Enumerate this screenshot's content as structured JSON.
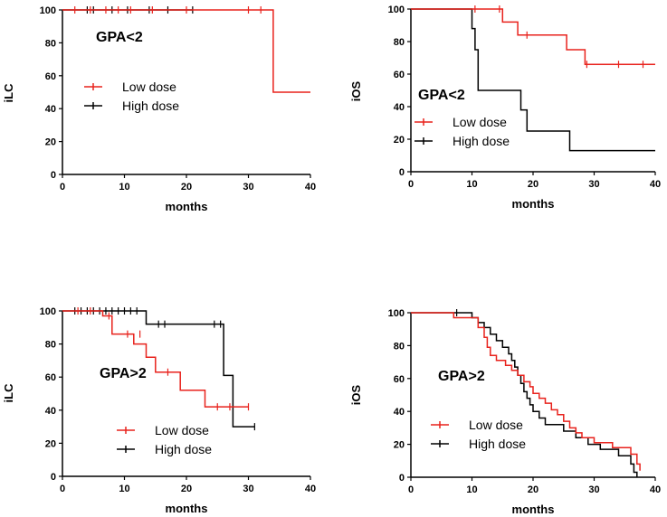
{
  "colors": {
    "low": "#e8221c",
    "high": "#000000"
  },
  "chart_data": [
    {
      "type": "line",
      "subtype": "kaplan-meier",
      "annotation": "GPA<2",
      "xlabel": "months",
      "ylabel": "iLC",
      "xlim": [
        0,
        40
      ],
      "ylim": [
        0,
        100
      ],
      "xticks": [
        "0",
        "10",
        "20",
        "30",
        "40"
      ],
      "yticks": [
        "0",
        "20",
        "40",
        "60",
        "80",
        "100"
      ],
      "legend": [
        "Low dose",
        "High dose"
      ],
      "series": [
        {
          "name": "Low dose",
          "steps": [
            [
              0,
              100
            ],
            [
              34,
              100
            ],
            [
              34,
              50
            ],
            [
              40,
              50
            ]
          ],
          "censors": [
            [
              2,
              100
            ],
            [
              4.5,
              100
            ],
            [
              7,
              100
            ],
            [
              9,
              100
            ],
            [
              11,
              100
            ],
            [
              14.5,
              100
            ],
            [
              20,
              100
            ],
            [
              30,
              100
            ],
            [
              32,
              100
            ]
          ]
        },
        {
          "name": "High dose",
          "steps": [
            [
              0,
              100
            ],
            [
              21,
              100
            ]
          ],
          "censors": [
            [
              4,
              100
            ],
            [
              5,
              100
            ],
            [
              8,
              100
            ],
            [
              10.5,
              100
            ],
            [
              14,
              100
            ],
            [
              17,
              100
            ],
            [
              21,
              100
            ]
          ]
        }
      ]
    },
    {
      "type": "line",
      "subtype": "kaplan-meier",
      "annotation": "GPA<2",
      "xlabel": "months",
      "ylabel": "iOS",
      "xlim": [
        0,
        40
      ],
      "ylim": [
        0,
        100
      ],
      "xticks": [
        "0",
        "10",
        "20",
        "30",
        "40"
      ],
      "yticks": [
        "0",
        "20",
        "40",
        "60",
        "80",
        "100"
      ],
      "legend": [
        "Low dose",
        "High dose"
      ],
      "series": [
        {
          "name": "Low dose",
          "steps": [
            [
              0,
              100
            ],
            [
              15,
              100
            ],
            [
              15,
              92
            ],
            [
              17.5,
              92
            ],
            [
              17.5,
              84
            ],
            [
              25.5,
              84
            ],
            [
              25.5,
              75
            ],
            [
              28.5,
              75
            ],
            [
              28.5,
              66
            ],
            [
              40,
              66
            ]
          ],
          "censors": [
            [
              10.5,
              100
            ],
            [
              14.5,
              100
            ],
            [
              19,
              84
            ],
            [
              28.8,
              66
            ],
            [
              34,
              66
            ],
            [
              38,
              66
            ]
          ]
        },
        {
          "name": "High dose",
          "steps": [
            [
              0,
              100
            ],
            [
              10,
              100
            ],
            [
              10,
              88
            ],
            [
              10.5,
              88
            ],
            [
              10.5,
              75
            ],
            [
              11,
              75
            ],
            [
              11,
              50
            ],
            [
              18,
              50
            ],
            [
              18,
              38
            ],
            [
              19,
              38
            ],
            [
              19,
              25
            ],
            [
              26,
              25
            ],
            [
              26,
              13
            ],
            [
              40,
              13
            ]
          ],
          "censors": []
        }
      ]
    },
    {
      "type": "line",
      "subtype": "kaplan-meier",
      "annotation": "GPA>2",
      "xlabel": "months",
      "ylabel": "iLC",
      "xlim": [
        0,
        40
      ],
      "ylim": [
        0,
        100
      ],
      "xticks": [
        "0",
        "10",
        "20",
        "30",
        "40"
      ],
      "yticks": [
        "0",
        "20",
        "40",
        "60",
        "80",
        "100"
      ],
      "legend": [
        "Low dose",
        "High dose"
      ],
      "series": [
        {
          "name": "Low dose",
          "steps": [
            [
              0,
              100
            ],
            [
              6.5,
              100
            ],
            [
              6.5,
              97
            ],
            [
              8,
              97
            ],
            [
              8,
              86
            ],
            [
              11.5,
              86
            ],
            [
              11.5,
              80
            ],
            [
              13.5,
              80
            ],
            [
              13.5,
              72
            ],
            [
              15,
              72
            ],
            [
              15,
              63
            ],
            [
              19,
              63
            ],
            [
              19,
              52
            ],
            [
              23,
              52
            ],
            [
              23,
              42
            ],
            [
              30,
              42
            ]
          ],
          "censors": [
            [
              2.5,
              100
            ],
            [
              4.5,
              100
            ],
            [
              7.5,
              97
            ],
            [
              10.5,
              86
            ],
            [
              12.5,
              86
            ],
            [
              17,
              63
            ],
            [
              25,
              42
            ],
            [
              27,
              42
            ],
            [
              30,
              42
            ]
          ]
        },
        {
          "name": "High dose",
          "steps": [
            [
              0,
              100
            ],
            [
              13.5,
              100
            ],
            [
              13.5,
              92
            ],
            [
              26,
              92
            ],
            [
              26,
              61
            ],
            [
              27.5,
              61
            ],
            [
              27.5,
              30
            ],
            [
              31,
              30
            ]
          ],
          "censors": [
            [
              2,
              100
            ],
            [
              3,
              100
            ],
            [
              4,
              100
            ],
            [
              5,
              100
            ],
            [
              6,
              100
            ],
            [
              7,
              100
            ],
            [
              8,
              100
            ],
            [
              9,
              100
            ],
            [
              10,
              100
            ],
            [
              11,
              100
            ],
            [
              12,
              100
            ],
            [
              15.5,
              92
            ],
            [
              16.5,
              92
            ],
            [
              24.5,
              92
            ],
            [
              25.5,
              92
            ],
            [
              31,
              30
            ]
          ]
        }
      ]
    },
    {
      "type": "line",
      "subtype": "kaplan-meier",
      "annotation": "GPA>2",
      "xlabel": "months",
      "ylabel": "iOS",
      "xlim": [
        0,
        40
      ],
      "ylim": [
        0,
        100
      ],
      "xticks": [
        "0",
        "10",
        "20",
        "30",
        "40"
      ],
      "yticks": [
        "0",
        "20",
        "40",
        "60",
        "80",
        "100"
      ],
      "legend": [
        "Low dose",
        "High dose"
      ],
      "series": [
        {
          "name": "Low dose",
          "steps": [
            [
              0,
              100
            ],
            [
              7,
              100
            ],
            [
              7,
              97
            ],
            [
              11,
              97
            ],
            [
              11,
              91
            ],
            [
              12,
              91
            ],
            [
              12,
              85
            ],
            [
              12.5,
              85
            ],
            [
              12.5,
              79
            ],
            [
              13,
              79
            ],
            [
              13,
              74
            ],
            [
              14,
              74
            ],
            [
              14,
              71
            ],
            [
              15.5,
              71
            ],
            [
              15.5,
              68
            ],
            [
              16.5,
              68
            ],
            [
              16.5,
              65
            ],
            [
              17.5,
              65
            ],
            [
              17.5,
              62
            ],
            [
              18.5,
              62
            ],
            [
              18.5,
              58
            ],
            [
              19.5,
              58
            ],
            [
              19.5,
              55
            ],
            [
              20,
              55
            ],
            [
              20,
              51
            ],
            [
              21,
              51
            ],
            [
              21,
              48
            ],
            [
              22,
              48
            ],
            [
              22,
              45
            ],
            [
              23,
              45
            ],
            [
              23,
              41
            ],
            [
              24,
              41
            ],
            [
              24,
              38
            ],
            [
              25,
              38
            ],
            [
              25,
              34
            ],
            [
              26,
              34
            ],
            [
              26,
              30
            ],
            [
              27,
              30
            ],
            [
              27,
              27
            ],
            [
              28,
              27
            ],
            [
              28,
              24
            ],
            [
              30,
              24
            ],
            [
              30,
              21
            ],
            [
              33,
              21
            ],
            [
              33,
              18
            ],
            [
              36,
              18
            ],
            [
              36,
              14
            ],
            [
              37,
              14
            ],
            [
              37,
              8
            ],
            [
              37.5,
              8
            ],
            [
              37.5,
              4
            ]
          ],
          "censors": []
        },
        {
          "name": "High dose",
          "steps": [
            [
              0,
              100
            ],
            [
              10,
              100
            ],
            [
              10,
              97
            ],
            [
              11,
              97
            ],
            [
              11,
              94
            ],
            [
              12,
              94
            ],
            [
              12,
              91
            ],
            [
              13,
              91
            ],
            [
              13,
              87
            ],
            [
              14,
              87
            ],
            [
              14,
              83
            ],
            [
              15,
              83
            ],
            [
              15,
              79
            ],
            [
              16,
              79
            ],
            [
              16,
              75
            ],
            [
              16.5,
              75
            ],
            [
              16.5,
              71
            ],
            [
              17,
              71
            ],
            [
              17,
              67
            ],
            [
              17.5,
              67
            ],
            [
              17.5,
              62
            ],
            [
              18,
              62
            ],
            [
              18,
              57
            ],
            [
              18.5,
              57
            ],
            [
              18.5,
              52
            ],
            [
              19,
              52
            ],
            [
              19,
              48
            ],
            [
              19.5,
              48
            ],
            [
              19.5,
              44
            ],
            [
              20,
              44
            ],
            [
              20,
              40
            ],
            [
              21,
              40
            ],
            [
              21,
              36
            ],
            [
              22,
              36
            ],
            [
              22,
              32
            ],
            [
              25,
              32
            ],
            [
              25,
              28
            ],
            [
              27,
              28
            ],
            [
              27,
              24
            ],
            [
              29,
              24
            ],
            [
              29,
              20
            ],
            [
              31,
              20
            ],
            [
              31,
              17
            ],
            [
              34,
              17
            ],
            [
              34,
              13
            ],
            [
              36,
              13
            ],
            [
              36,
              8
            ],
            [
              36.5,
              8
            ],
            [
              36.5,
              3
            ],
            [
              37,
              3
            ],
            [
              37,
              0
            ]
          ],
          "censors": [
            [
              7.5,
              100
            ]
          ]
        }
      ]
    }
  ]
}
